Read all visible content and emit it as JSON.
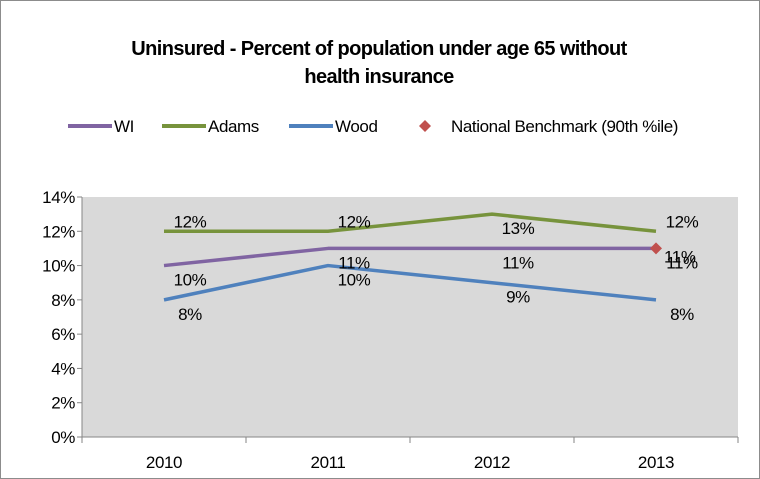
{
  "chart_data": {
    "type": "line",
    "title_lines": [
      "Uninsured - Percent of population under age 65 without",
      "health insurance"
    ],
    "categories": [
      "2010",
      "2011",
      "2012",
      "2013"
    ],
    "series": [
      {
        "name": "WI",
        "values": [
          10,
          11,
          11,
          11
        ],
        "labels": [
          "10%",
          "11%",
          "11%",
          "11%"
        ],
        "color": "#8064a2"
      },
      {
        "name": "Adams",
        "values": [
          12,
          12,
          13,
          12
        ],
        "labels": [
          "12%",
          "12%",
          "13%",
          "12%"
        ],
        "color": "#77933c"
      },
      {
        "name": "Wood",
        "values": [
          8,
          10,
          9,
          8
        ],
        "labels": [
          "8%",
          "10%",
          "9%",
          "8%"
        ],
        "color": "#4f81bd"
      }
    ],
    "benchmark": {
      "name": "National Benchmark (90th %ile)",
      "category": "2013",
      "value": 11,
      "label": "11%",
      "color": "#c0504d",
      "marker": "diamond"
    },
    "ylim": [
      0,
      14
    ],
    "yticks": [
      0,
      2,
      4,
      6,
      8,
      10,
      12,
      14
    ],
    "ytick_labels": [
      "0%",
      "2%",
      "4%",
      "6%",
      "8%",
      "10%",
      "12%",
      "14%"
    ],
    "plot_background": "#d9d9d9",
    "grid": false,
    "legend_position": "top"
  }
}
